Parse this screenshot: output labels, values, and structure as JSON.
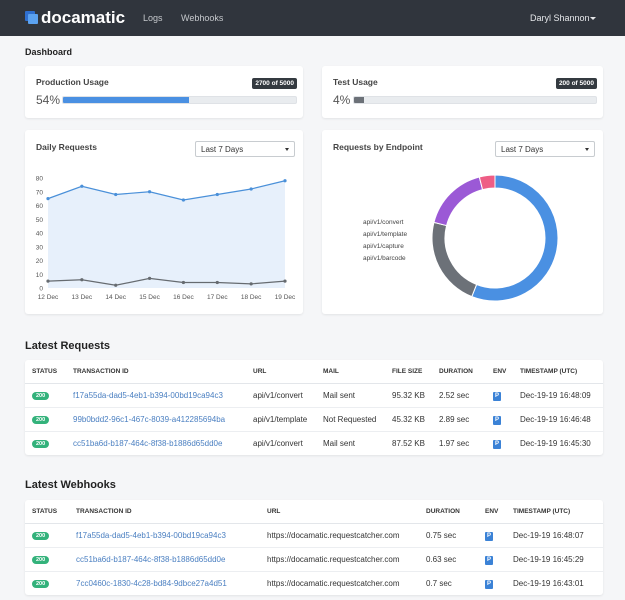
{
  "nav": {
    "brand": "docamatic",
    "links": [
      "Logs",
      "Webhooks"
    ],
    "user": "Daryl Shannon"
  },
  "page_title": "Dashboard",
  "usage": [
    {
      "title": "Production Usage",
      "percent": 54,
      "percent_label": "54%",
      "badge": "2700 of 5000",
      "color": "#4a90e2"
    },
    {
      "title": "Test Usage",
      "percent": 4,
      "percent_label": "4%",
      "badge": "200 of 5000",
      "color": "#6c7178"
    }
  ],
  "chart_data": [
    {
      "type": "line",
      "title": "Daily Requests",
      "filter": "Last 7 Days",
      "categories": [
        "12 Dec",
        "13 Dec",
        "14 Dec",
        "15 Dec",
        "16 Dec",
        "17 Dec",
        "18 Dec",
        "19 Dec"
      ],
      "series": [
        {
          "color": "#4a90d9",
          "fill": "#e7f0fb",
          "values": [
            65,
            74,
            68,
            70,
            64,
            68,
            72,
            78
          ]
        },
        {
          "color": "#666b70",
          "values": [
            5,
            6,
            2,
            7,
            4,
            4,
            3,
            5
          ]
        }
      ],
      "ylim": [
        0,
        80
      ],
      "yticks": [
        0,
        10,
        20,
        30,
        40,
        50,
        60,
        70,
        80
      ]
    },
    {
      "type": "pie",
      "title": "Requests by Endpoint",
      "filter": "Last 7 Days",
      "categories": [
        "api/v1/convert",
        "api/v1/template",
        "api/v1/capture",
        "api/v1/barcode"
      ],
      "values": [
        56,
        23,
        17,
        4
      ],
      "colors": [
        "#4a90e2",
        "#6c7178",
        "#9b59d6",
        "#ee5d85"
      ],
      "legend": "left"
    }
  ],
  "requests": {
    "title": "Latest Requests",
    "columns": [
      "STATUS",
      "TRANSACTION ID",
      "URL",
      "MAIL",
      "FILE SIZE",
      "DURATION",
      "ENV",
      "TIMESTAMP (UTC)"
    ],
    "rows": [
      [
        "200",
        "f17a55da-dad5-4eb1-b394-00bd19ca94c3",
        "api/v1/convert",
        "Mail sent",
        "95.32 KB",
        "2.52 sec",
        "P",
        "Dec-19-19 16:48:09"
      ],
      [
        "200",
        "99b0bdd2-96c1-467c-8039-a412285694ba",
        "api/v1/template",
        "Not Requested",
        "45.32 KB",
        "2.89 sec",
        "P",
        "Dec-19-19 16:46:48"
      ],
      [
        "200",
        "cc51ba6d-b187-464c-8f38-b1886d65dd0e",
        "api/v1/convert",
        "Mail sent",
        "87.52 KB",
        "1.97 sec",
        "P",
        "Dec-19-19 16:45:30"
      ]
    ]
  },
  "webhooks": {
    "title": "Latest Webhooks",
    "columns": [
      "STATUS",
      "TRANSACTION ID",
      "URL",
      "DURATION",
      "ENV",
      "TIMESTAMP (UTC)"
    ],
    "rows": [
      [
        "200",
        "f17a55da-dad5-4eb1-b394-00bd19ca94c3",
        "https://docamatic.requestcatcher.com",
        "0.75 sec",
        "P",
        "Dec-19-19 16:48:07"
      ],
      [
        "200",
        "cc51ba6d-b187-464c-8f38-b1886d65dd0e",
        "https://docamatic.requestcatcher.com",
        "0.63 sec",
        "P",
        "Dec-19-19 16:45:29"
      ],
      [
        "200",
        "7cc0460c-1830-4c28-bd84-9dbce27a4d51",
        "https://docamatic.requestcatcher.com",
        "0.7 sec",
        "P",
        "Dec-19-19 16:43:01"
      ]
    ]
  }
}
